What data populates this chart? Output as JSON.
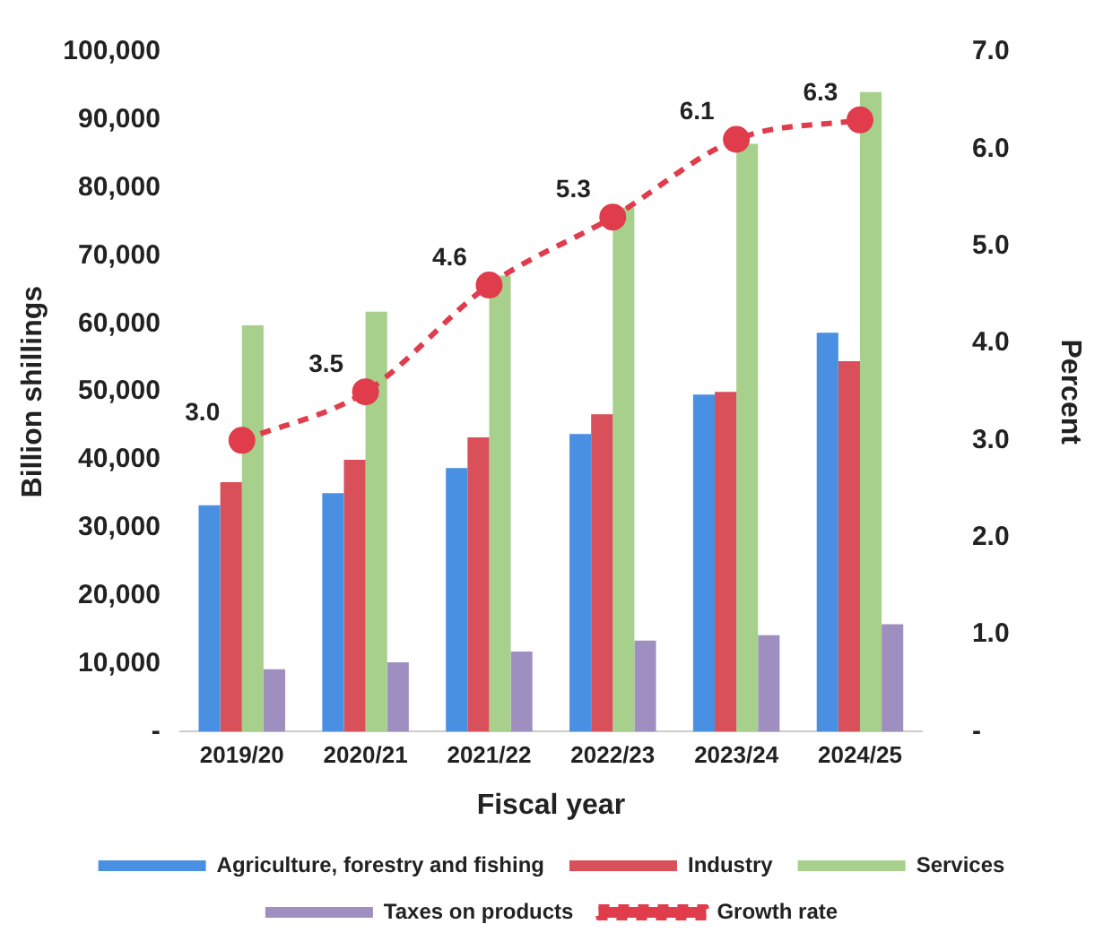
{
  "chart_data": {
    "type": "bar",
    "xlabel": "Fiscal year",
    "ylabel": "Billion shillings",
    "y2label": "Percent",
    "categories": [
      "2019/20",
      "2020/21",
      "2021/22",
      "2022/23",
      "2023/24",
      "2024/25"
    ],
    "series": [
      {
        "name": "Agriculture, forestry and fishing",
        "color": "#4a90e2",
        "values": [
          33300,
          35100,
          38800,
          43800,
          49600,
          58700
        ]
      },
      {
        "name": "Industry",
        "color": "#d9505a",
        "values": [
          36700,
          40000,
          43300,
          46700,
          50000,
          54500
        ]
      },
      {
        "name": "Services",
        "color": "#a8d08d",
        "values": [
          59800,
          61800,
          67100,
          77100,
          86500,
          94100
        ]
      },
      {
        "name": "Taxes on products",
        "color": "#9f8fc0",
        "values": [
          9200,
          10200,
          11800,
          13400,
          14200,
          15800
        ]
      },
      {
        "name": "Growth rate",
        "type": "line",
        "axis": "y2",
        "color": "#e03c4c",
        "values": [
          3.0,
          3.5,
          4.6,
          5.3,
          6.1,
          6.3
        ],
        "value_labels": [
          "3.0",
          "3.5",
          "4.6",
          "5.3",
          "6.1",
          "6.3"
        ],
        "marker": "circle",
        "line_style": "dashed"
      }
    ],
    "ylim": [
      0,
      100000
    ],
    "yticks": [
      {
        "value": 0,
        "label": "-"
      },
      {
        "value": 10000,
        "label": "10,000"
      },
      {
        "value": 20000,
        "label": "20,000"
      },
      {
        "value": 30000,
        "label": "30,000"
      },
      {
        "value": 40000,
        "label": "40,000"
      },
      {
        "value": 50000,
        "label": "50,000"
      },
      {
        "value": 60000,
        "label": "60,000"
      },
      {
        "value": 70000,
        "label": "70,000"
      },
      {
        "value": 80000,
        "label": "80,000"
      },
      {
        "value": 90000,
        "label": "90,000"
      },
      {
        "value": 100000,
        "label": "100,000"
      }
    ],
    "y2lim": [
      0,
      7
    ],
    "y2ticks": [
      {
        "value": 0,
        "label": "-"
      },
      {
        "value": 1,
        "label": "1.0"
      },
      {
        "value": 2,
        "label": "2.0"
      },
      {
        "value": 3,
        "label": "3.0"
      },
      {
        "value": 4,
        "label": "4.0"
      },
      {
        "value": 5,
        "label": "5.0"
      },
      {
        "value": 6,
        "label": "6.0"
      },
      {
        "value": 7,
        "label": "7.0"
      }
    ],
    "grid": false,
    "legend": "bottom"
  }
}
